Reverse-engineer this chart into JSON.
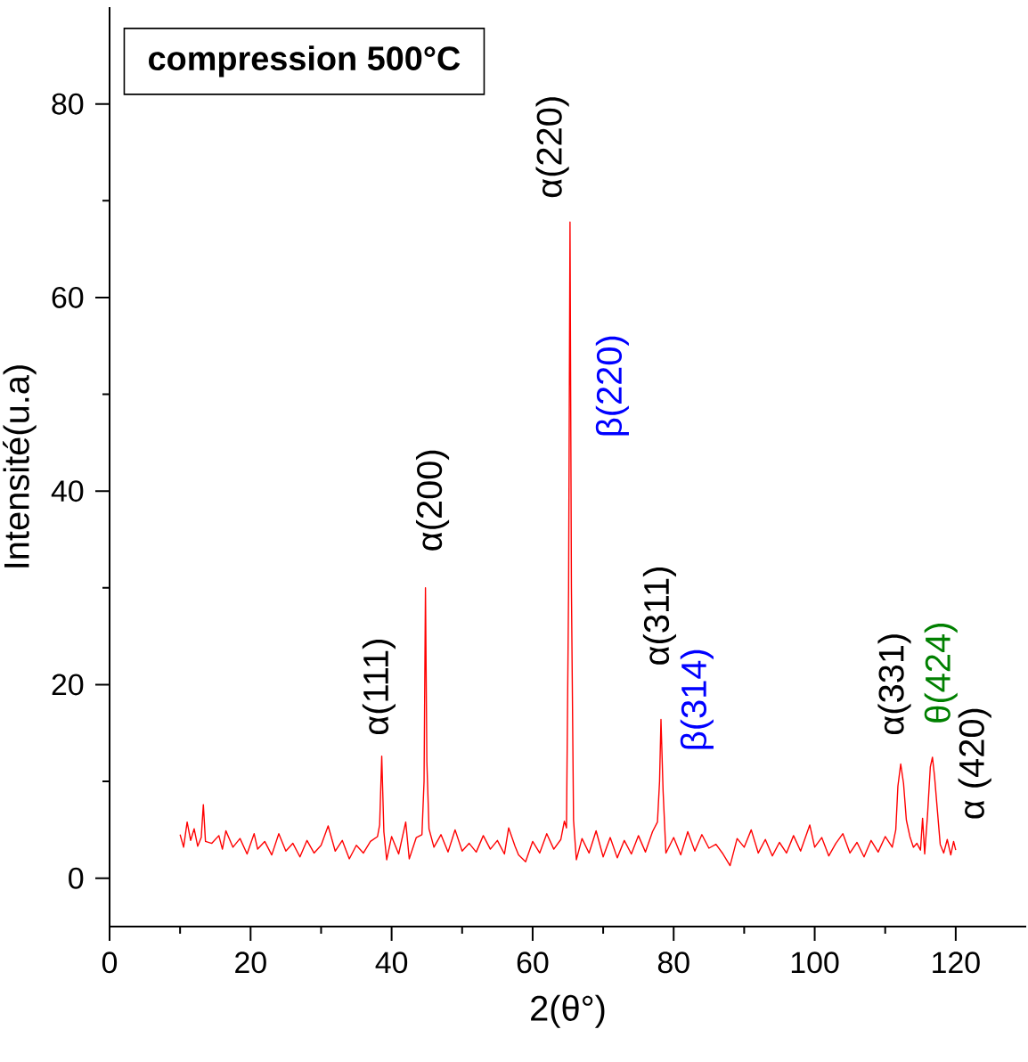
{
  "chart_data": {
    "type": "line",
    "title": "compression 500°C",
    "xlabel": "2(θ°)",
    "ylabel": "Intensité(u.a)",
    "xlim": [
      0,
      130
    ],
    "ylim": [
      -5,
      90
    ],
    "xticks": [
      0,
      20,
      40,
      60,
      80,
      100,
      120
    ],
    "yticks": [
      0,
      20,
      40,
      60,
      80
    ],
    "grid": false,
    "marker": "none",
    "line_style": "solid",
    "series": [
      {
        "color": "#ff0000",
        "x": [
          10,
          10.5,
          11,
          11.5,
          12,
          12.5,
          13,
          13.3,
          13.6,
          14.5,
          15.5,
          16,
          16.5,
          17.5,
          18.5,
          19.5,
          20.5,
          21,
          22,
          23,
          24,
          25,
          26,
          27,
          28,
          29,
          30,
          31,
          32,
          33,
          34,
          35,
          36,
          37,
          38,
          38.3,
          38.6,
          38.9,
          39.3,
          40,
          41,
          42,
          42.5,
          43.5,
          44.3,
          44.6,
          44.8,
          45.0,
          45.3,
          46,
          47,
          48,
          49,
          50,
          51,
          52,
          53,
          54,
          55,
          56,
          56.6,
          57.5,
          58,
          59,
          60,
          61,
          62,
          63,
          64,
          64.5,
          64.8,
          65.1,
          65.3,
          65.5,
          65.8,
          66.2,
          67,
          68,
          69,
          70,
          71,
          72,
          73,
          74,
          75,
          76,
          77,
          77.7,
          78.0,
          78.2,
          78.5,
          78.9,
          80,
          81,
          82,
          83,
          84,
          85,
          86,
          87,
          88,
          89,
          90,
          91,
          92,
          93,
          94,
          95,
          96,
          97,
          98,
          99.3,
          100,
          101,
          102,
          103,
          104,
          105,
          106,
          107,
          108,
          109,
          110,
          111,
          111.5,
          111.8,
          112.2,
          112.6,
          113,
          113.5,
          114,
          114.5,
          115,
          115.3,
          115.6,
          116,
          116.4,
          116.7,
          117,
          117.4,
          117.8,
          118.3,
          118.8,
          119.3,
          119.7,
          120
        ],
        "values": [
          4.5,
          3.2,
          5.8,
          3.9,
          5.1,
          3.3,
          4.2,
          7.6,
          3.8,
          3.6,
          4.4,
          3.0,
          4.9,
          3.2,
          4.1,
          2.5,
          4.6,
          3.0,
          3.8,
          2.4,
          4.6,
          2.8,
          3.6,
          2.2,
          3.9,
          2.6,
          3.4,
          5.4,
          2.8,
          3.9,
          2.0,
          3.4,
          2.6,
          3.8,
          4.3,
          5.5,
          12.6,
          4.8,
          1.9,
          4.3,
          2.5,
          5.8,
          2.0,
          4.2,
          4.5,
          10,
          30.0,
          12,
          5.1,
          3.2,
          4.5,
          2.7,
          5.0,
          2.8,
          3.6,
          2.7,
          4.4,
          3.0,
          3.9,
          2.5,
          5.2,
          3.3,
          2.4,
          1.7,
          3.8,
          2.6,
          4.6,
          3.0,
          4.0,
          5.9,
          5.2,
          30,
          67.8,
          30,
          6.0,
          1.9,
          4.1,
          2.6,
          4.9,
          2.2,
          4.2,
          2.1,
          3.9,
          2.5,
          4.4,
          2.7,
          4.8,
          5.8,
          10,
          16.4,
          9,
          2.6,
          4.2,
          2.4,
          4.8,
          2.8,
          4.5,
          3.1,
          3.5,
          2.5,
          1.3,
          4.1,
          3.2,
          5.0,
          2.6,
          4.0,
          2.3,
          3.7,
          2.6,
          4.4,
          2.8,
          5.5,
          3.2,
          4.2,
          2.3,
          3.6,
          4.6,
          2.6,
          3.7,
          2.2,
          3.9,
          2.7,
          4.3,
          3.2,
          5.0,
          9.5,
          11.8,
          9.8,
          6.0,
          4.3,
          3.2,
          3.6,
          2.9,
          6.2,
          2.5,
          6.5,
          11.5,
          12.5,
          10.5,
          7,
          3.5,
          2.6,
          4.0,
          2.4,
          3.8,
          2.9
        ]
      }
    ],
    "annotations": [
      "α(111)",
      "α(200)",
      "α(220)",
      "β(220)",
      "α(311)",
      "β(314)",
      "α(331)",
      "θ(424)",
      "α (420)"
    ]
  }
}
